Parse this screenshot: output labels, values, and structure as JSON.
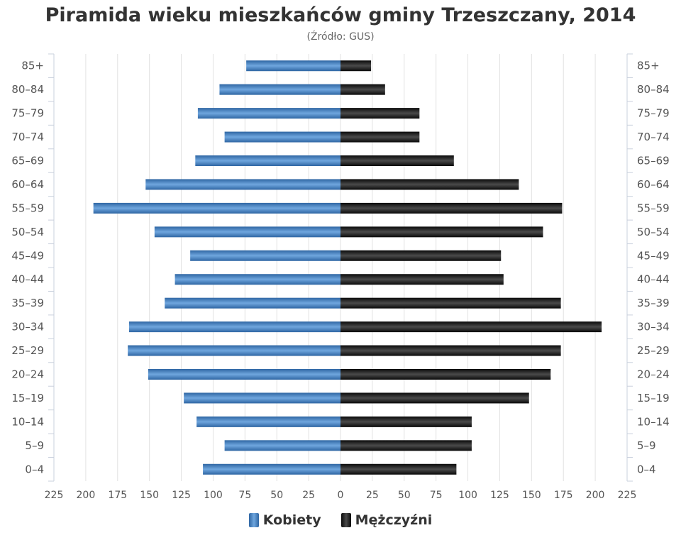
{
  "chart_data": {
    "type": "bar",
    "orientation": "horizontal",
    "title": "Piramida wieku mieszkańców gminy Trzeszczany, 2014",
    "subtitle": "(Źródło: GUS)",
    "categories": [
      "0–4",
      "5–9",
      "10–14",
      "15–19",
      "20–24",
      "25–29",
      "30–34",
      "35–39",
      "40–44",
      "45–49",
      "50–54",
      "55–59",
      "60–64",
      "65–69",
      "70–74",
      "75–79",
      "80–84",
      "85+"
    ],
    "series": [
      {
        "name": "Kobiety",
        "color": "#3d7ab8",
        "side": "left",
        "values": [
          108,
          91,
          113,
          123,
          151,
          167,
          166,
          138,
          130,
          118,
          146,
          194,
          153,
          114,
          91,
          112,
          95,
          74
        ]
      },
      {
        "name": "Mężczyźni",
        "color": "#1a1a1a",
        "side": "right",
        "values": [
          91,
          103,
          103,
          148,
          165,
          173,
          205,
          173,
          128,
          126,
          159,
          174,
          140,
          89,
          62,
          62,
          35,
          24
        ]
      }
    ],
    "xlim": [
      -225,
      225
    ],
    "x_ticks": [
      225,
      200,
      175,
      150,
      125,
      100,
      75,
      50,
      25,
      0,
      25,
      50,
      75,
      100,
      125,
      150,
      175,
      200,
      225
    ],
    "grid": true,
    "legend": "bottom-center"
  }
}
